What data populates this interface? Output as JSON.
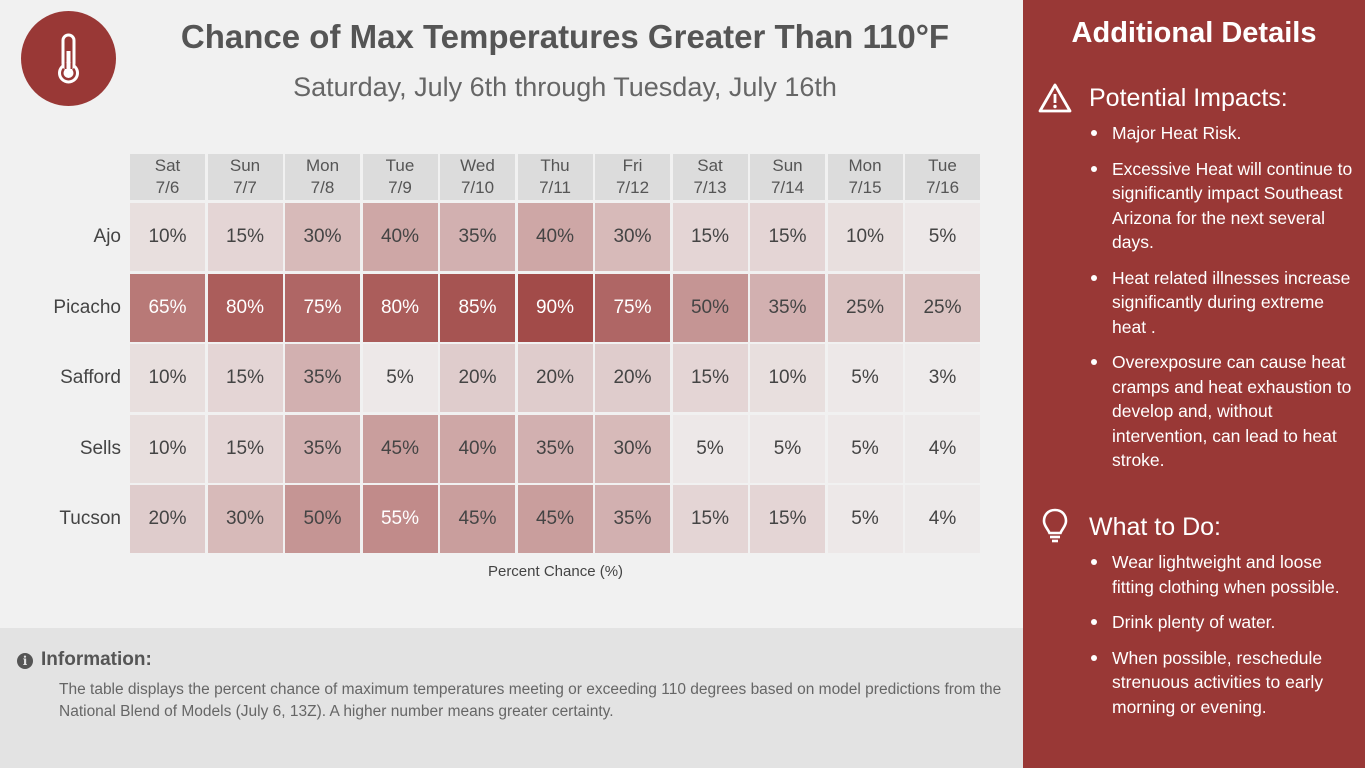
{
  "header": {
    "title": "Chance of Max Temperatures Greater Than 110°F",
    "subtitle": "Saturday, July 6th through Tuesday, July 16th",
    "logo_icon": "thermometer-icon"
  },
  "chart_data": {
    "type": "heatmap",
    "title": "Chance of Max Temperatures Greater Than 110°F",
    "subtitle": "Saturday, July 6th through Tuesday, July 16th",
    "xlabel": "Percent Chance (%)",
    "unit": "%",
    "columns": [
      {
        "day": "Sat",
        "date": "7/6"
      },
      {
        "day": "Sun",
        "date": "7/7"
      },
      {
        "day": "Mon",
        "date": "7/8"
      },
      {
        "day": "Tue",
        "date": "7/9"
      },
      {
        "day": "Wed",
        "date": "7/10"
      },
      {
        "day": "Thu",
        "date": "7/11"
      },
      {
        "day": "Fri",
        "date": "7/12"
      },
      {
        "day": "Sat",
        "date": "7/13"
      },
      {
        "day": "Sun",
        "date": "7/14"
      },
      {
        "day": "Mon",
        "date": "7/15"
      },
      {
        "day": "Tue",
        "date": "7/16"
      }
    ],
    "rows": [
      {
        "location": "Ajo",
        "values": [
          10,
          15,
          30,
          40,
          35,
          40,
          30,
          15,
          15,
          10,
          5
        ]
      },
      {
        "location": "Picacho",
        "values": [
          65,
          80,
          75,
          80,
          85,
          90,
          75,
          50,
          35,
          25,
          25
        ]
      },
      {
        "location": "Safford",
        "values": [
          10,
          15,
          35,
          5,
          20,
          20,
          20,
          15,
          10,
          5,
          3
        ]
      },
      {
        "location": "Sells",
        "values": [
          10,
          15,
          35,
          45,
          40,
          35,
          30,
          5,
          5,
          5,
          4
        ]
      },
      {
        "location": "Tucson",
        "values": [
          20,
          30,
          50,
          55,
          45,
          45,
          35,
          15,
          15,
          5,
          4
        ]
      }
    ],
    "color_scale": {
      "low": "#f1f1f1",
      "high": "#993836",
      "min": 0,
      "max": 100
    }
  },
  "info": {
    "icon": "info-icon",
    "title": "Information:",
    "text": "The table displays the percent chance of maximum temperatures meeting or exceeding 110 degrees based on model predictions from the National Blend of Models (July 6, 13Z). A higher number means greater certainty."
  },
  "sidebar": {
    "title": "Additional Details",
    "impacts": {
      "icon": "warning-icon",
      "title": "Potential Impacts:",
      "items": [
        "Major Heat Risk.",
        "Excessive Heat will continue to significantly impact Southeast Arizona for the next several days.",
        "Heat related illnesses increase significantly during extreme heat .",
        "Overexposure can cause heat cramps and heat exhaustion to develop and, without intervention, can lead to heat stroke."
      ]
    },
    "todo": {
      "icon": "lightbulb-icon",
      "title": "What to Do:",
      "items": [
        "Wear lightweight and loose fitting clothing when possible.",
        "Drink plenty of water.",
        "When possible, reschedule strenuous activities to early morning or evening."
      ]
    }
  }
}
